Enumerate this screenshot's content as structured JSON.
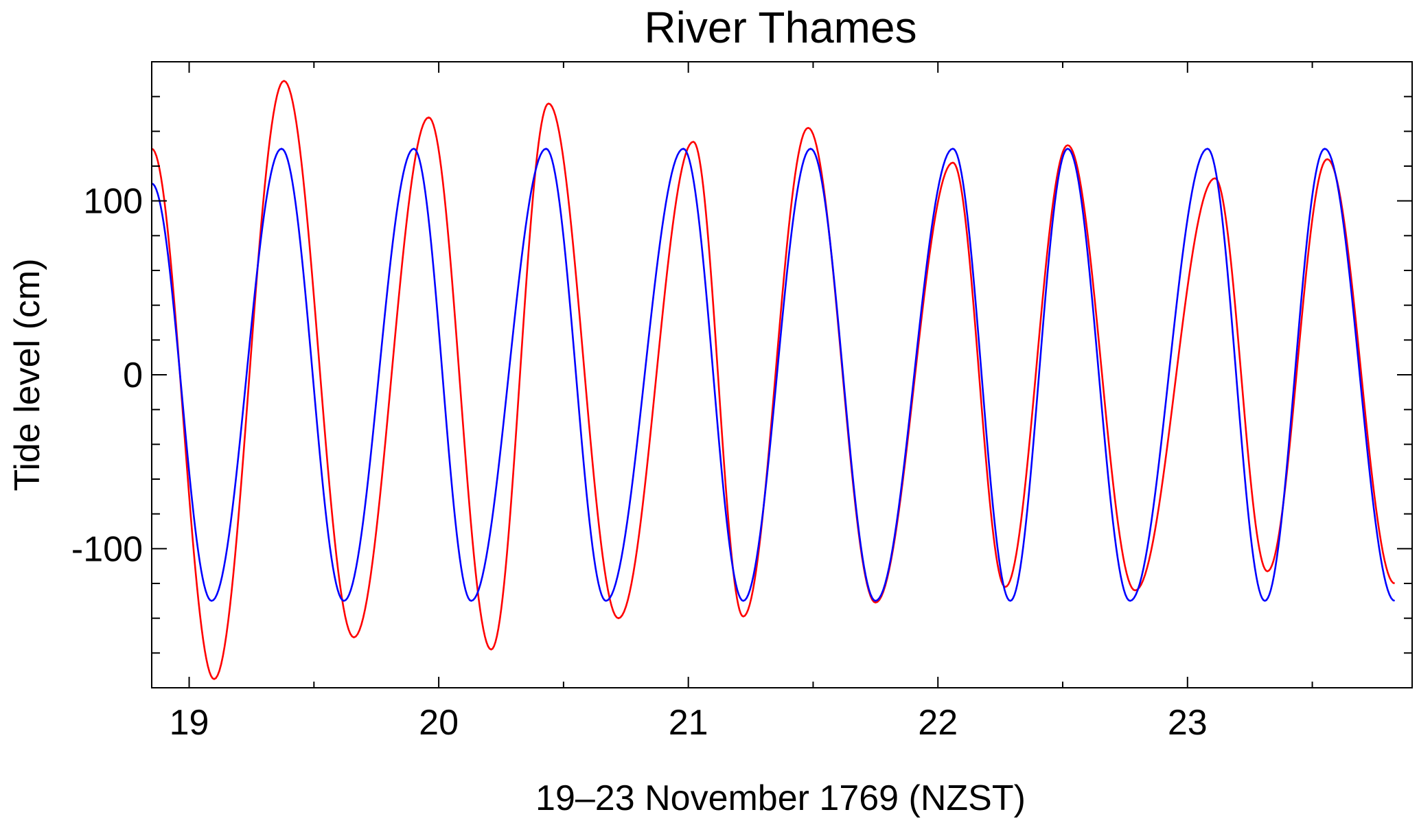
{
  "chart_data": {
    "type": "line",
    "title": "River Thames",
    "xlabel": "19–23 November 1769 (NZST)",
    "ylabel": "Tide level (cm)",
    "xlim": [
      18.85,
      23.9
    ],
    "ylim": [
      -180,
      180
    ],
    "x_ticks": [
      19,
      20,
      21,
      22,
      23
    ],
    "x_tick_labels": [
      "19",
      "20",
      "21",
      "22",
      "23"
    ],
    "y_ticks": [
      -100,
      0,
      100
    ],
    "y_tick_labels": [
      "-100",
      "0",
      "100"
    ],
    "grid": false,
    "series": [
      {
        "color": "#ff0000",
        "x": [
          18.85,
          19.1,
          19.38,
          19.66,
          19.96,
          20.21,
          20.44,
          20.72,
          21.02,
          21.22,
          21.48,
          21.75,
          22.06,
          22.27,
          22.52,
          22.79,
          23.11,
          23.32,
          23.56,
          23.83
        ],
        "values": [
          130,
          -175,
          169,
          -151,
          148,
          -158,
          156,
          -140,
          134,
          -139,
          142,
          -131,
          122,
          -122,
          132,
          -124,
          113,
          -113,
          124,
          -120
        ]
      },
      {
        "color": "#0000ff",
        "x": [
          18.85,
          19.09,
          19.37,
          19.62,
          19.9,
          20.13,
          20.43,
          20.67,
          20.98,
          21.22,
          21.49,
          21.75,
          22.06,
          22.29,
          22.52,
          22.77,
          23.08,
          23.31,
          23.55,
          23.83
        ],
        "values": [
          110,
          -130,
          130,
          -130,
          130,
          -130,
          130,
          -130,
          130,
          -130,
          130,
          -130,
          130,
          -130,
          130,
          -130,
          130,
          -130,
          130,
          -130
        ]
      }
    ]
  }
}
